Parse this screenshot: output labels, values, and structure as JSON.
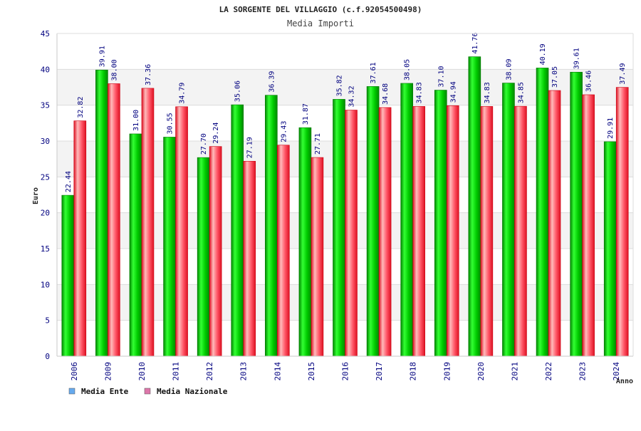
{
  "chart_data": {
    "type": "bar",
    "title": "LA SORGENTE DEL VILLAGGIO (c.f.92054500498)",
    "subtitle": "Media Importi",
    "xlabel": "Anno",
    "ylabel": "Euro",
    "ylim": [
      0,
      45
    ],
    "yticks": [
      0,
      5,
      10,
      15,
      20,
      25,
      30,
      35,
      40,
      45
    ],
    "grid": true,
    "legend_position": "bottom-left",
    "categories": [
      "2006",
      "2009",
      "2010",
      "2011",
      "2012",
      "2013",
      "2014",
      "2015",
      "2016",
      "2017",
      "2018",
      "2019",
      "2020",
      "2021",
      "2022",
      "2023",
      "2024"
    ],
    "series": [
      {
        "name": "Media Ente",
        "color": "#00cc00",
        "legend_color": "#66aaee",
        "values": [
          22.44,
          39.91,
          31.0,
          30.55,
          27.7,
          35.06,
          36.39,
          31.87,
          35.82,
          37.61,
          38.05,
          37.1,
          41.76,
          38.09,
          40.19,
          39.61,
          29.91
        ],
        "labels": [
          "22.44",
          "39.91",
          "31.00",
          "30.55",
          "27.70",
          "35.06",
          "36.39",
          "31.87",
          "35.82",
          "37.61",
          "38.05",
          "37.10",
          "41.76",
          "38.09",
          "40.19",
          "39.61",
          "29.91"
        ]
      },
      {
        "name": "Media Nazionale",
        "color": "#ff3344",
        "legend_color": "#dd77aa",
        "values": [
          32.82,
          38.0,
          37.36,
          34.79,
          29.24,
          27.19,
          29.43,
          27.71,
          34.32,
          34.68,
          34.83,
          34.94,
          34.83,
          34.85,
          37.05,
          36.46,
          37.49
        ],
        "labels": [
          "32.82",
          "38.00",
          "37.36",
          "34.79",
          "29.24",
          "27.19",
          "29.43",
          "27.71",
          "34.32",
          "34.68",
          "34.83",
          "34.94",
          "34.83",
          "34.85",
          "37.05",
          "36.46",
          "37.49"
        ]
      }
    ]
  }
}
